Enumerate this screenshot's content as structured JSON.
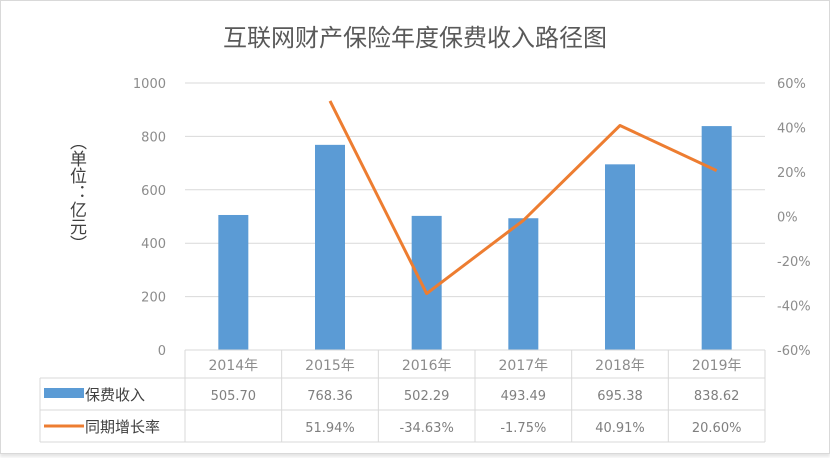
{
  "chart_data": {
    "type": "bar+line",
    "title": "互联网财产保险年度保费收入路径图",
    "ylabel": "（单位：亿元）",
    "categories": [
      "2014年",
      "2015年",
      "2016年",
      "2017年",
      "2018年",
      "2019年"
    ],
    "y_left": {
      "range": [
        0,
        1000
      ],
      "ticks": [
        "0",
        "200",
        "400",
        "600",
        "800",
        "1000"
      ]
    },
    "y_right": {
      "range": [
        -60,
        60
      ],
      "ticks": [
        "-60%",
        "-40%",
        "-20%",
        "0%",
        "20%",
        "40%",
        "60%"
      ]
    },
    "grid": true,
    "legend": "data-table",
    "series": [
      {
        "name": "保费收入",
        "type": "bar",
        "axis": "left",
        "color": "#5b9bd5",
        "values": [
          505.7,
          768.36,
          502.29,
          493.49,
          695.38,
          838.62
        ],
        "labels": [
          "505.70",
          "768.36",
          "502.29",
          "493.49",
          "695.38",
          "838.62"
        ]
      },
      {
        "name": "同期增长率",
        "type": "line",
        "axis": "right",
        "color": "#ed7d31",
        "values": [
          null,
          51.94,
          -34.63,
          -1.75,
          40.91,
          20.6
        ],
        "labels": [
          "",
          "51.94%",
          "-34.63%",
          "-1.75%",
          "40.91%",
          "20.60%"
        ]
      }
    ]
  }
}
